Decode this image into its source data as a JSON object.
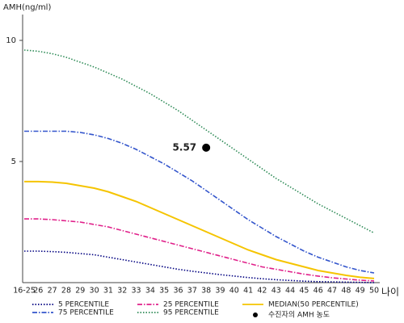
{
  "chart_data": {
    "type": "line",
    "ylabel": "AMH(ng/ml)",
    "xlabel": "나이",
    "categories": [
      "16-25",
      "26",
      "27",
      "28",
      "29",
      "30",
      "31",
      "32",
      "33",
      "34",
      "35",
      "36",
      "37",
      "38",
      "39",
      "40",
      "41",
      "42",
      "43",
      "44",
      "45",
      "46",
      "47",
      "48",
      "49",
      "50"
    ],
    "ylim": [
      0,
      11
    ],
    "yticks": [
      5,
      10
    ],
    "series": [
      {
        "name": "5 PERCENTILE",
        "color": "#000080",
        "dash": "dotted",
        "values": [
          1.3,
          1.3,
          1.28,
          1.25,
          1.2,
          1.15,
          1.05,
          0.95,
          0.85,
          0.75,
          0.65,
          0.55,
          0.47,
          0.4,
          0.33,
          0.27,
          0.21,
          0.16,
          0.12,
          0.09,
          0.06,
          0.04,
          0.03,
          0.02,
          0.01,
          0.0
        ]
      },
      {
        "name": "25 PERCENTILE",
        "color": "#e0208a",
        "dash": "dashdot",
        "values": [
          2.63,
          2.63,
          2.6,
          2.55,
          2.5,
          2.4,
          2.3,
          2.15,
          2.0,
          1.85,
          1.7,
          1.55,
          1.4,
          1.25,
          1.1,
          0.95,
          0.8,
          0.65,
          0.55,
          0.45,
          0.35,
          0.27,
          0.2,
          0.15,
          0.1,
          0.07
        ]
      },
      {
        "name": "MEDIAN(50 PERCENTILE)",
        "color": "#f5c400",
        "dash": "solid",
        "values": [
          4.17,
          4.17,
          4.15,
          4.1,
          4.0,
          3.9,
          3.75,
          3.55,
          3.35,
          3.1,
          2.85,
          2.6,
          2.35,
          2.1,
          1.85,
          1.6,
          1.35,
          1.15,
          0.95,
          0.8,
          0.65,
          0.5,
          0.4,
          0.3,
          0.22,
          0.17
        ]
      },
      {
        "name": "75 PERCENTILE",
        "color": "#3355cc",
        "dash": "dashdot",
        "values": [
          6.25,
          6.25,
          6.25,
          6.25,
          6.2,
          6.1,
          5.95,
          5.75,
          5.5,
          5.2,
          4.9,
          4.55,
          4.2,
          3.8,
          3.4,
          3.0,
          2.6,
          2.25,
          1.9,
          1.6,
          1.3,
          1.05,
          0.85,
          0.65,
          0.5,
          0.4
        ]
      },
      {
        "name": "95 PERCENTILE",
        "color": "#2e8b57",
        "dash": "dotted",
        "values": [
          9.6,
          9.55,
          9.45,
          9.3,
          9.1,
          8.9,
          8.65,
          8.4,
          8.1,
          7.8,
          7.45,
          7.1,
          6.7,
          6.3,
          5.9,
          5.5,
          5.1,
          4.7,
          4.3,
          3.95,
          3.6,
          3.25,
          2.95,
          2.65,
          2.35,
          2.05
        ]
      }
    ],
    "point": {
      "name": "수진자의 AMH 농도",
      "x": "38",
      "value": 5.57,
      "color": "#000000"
    }
  }
}
